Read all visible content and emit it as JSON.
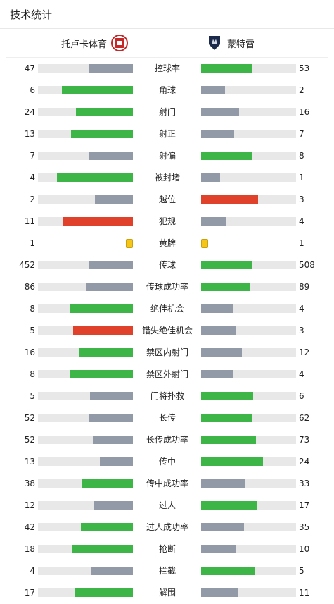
{
  "header": {
    "title": "技术统计"
  },
  "teams": {
    "home": "托卢卡体育",
    "away": "蒙特雷"
  },
  "colors": {
    "win": "#3db547",
    "lose": "#929aa8",
    "foul": "#e0412a",
    "track": "#e8e8e8",
    "card": "#f5c518"
  },
  "stats": [
    {
      "label": "控球率",
      "home": 47,
      "away": 53,
      "home_frac": 0.47,
      "away_frac": 0.53,
      "home_color": "lose",
      "away_color": "win"
    },
    {
      "label": "角球",
      "home": 6,
      "away": 2,
      "home_frac": 0.75,
      "away_frac": 0.25,
      "home_color": "win",
      "away_color": "lose"
    },
    {
      "label": "射门",
      "home": 24,
      "away": 16,
      "home_frac": 0.6,
      "away_frac": 0.4,
      "home_color": "win",
      "away_color": "lose"
    },
    {
      "label": "射正",
      "home": 13,
      "away": 7,
      "home_frac": 0.65,
      "away_frac": 0.35,
      "home_color": "win",
      "away_color": "lose"
    },
    {
      "label": "射偏",
      "home": 7,
      "away": 8,
      "home_frac": 0.47,
      "away_frac": 0.53,
      "home_color": "lose",
      "away_color": "win"
    },
    {
      "label": "被封堵",
      "home": 4,
      "away": 1,
      "home_frac": 0.8,
      "away_frac": 0.2,
      "home_color": "win",
      "away_color": "lose"
    },
    {
      "label": "越位",
      "home": 2,
      "away": 3,
      "home_frac": 0.4,
      "away_frac": 0.6,
      "home_color": "lose",
      "away_color": "foul"
    },
    {
      "label": "犯规",
      "home": 11,
      "away": 4,
      "home_frac": 0.73,
      "away_frac": 0.27,
      "home_color": "foul",
      "away_color": "lose"
    },
    {
      "label": "黄牌",
      "home": 1,
      "away": 1,
      "type": "card"
    },
    {
      "label": "传球",
      "home": 452,
      "away": 508,
      "home_frac": 0.47,
      "away_frac": 0.53,
      "home_color": "lose",
      "away_color": "win"
    },
    {
      "label": "传球成功率",
      "home": 86,
      "away": 89,
      "home_frac": 0.49,
      "away_frac": 0.51,
      "home_color": "lose",
      "away_color": "win"
    },
    {
      "label": "绝佳机会",
      "home": 8,
      "away": 4,
      "home_frac": 0.67,
      "away_frac": 0.33,
      "home_color": "win",
      "away_color": "lose"
    },
    {
      "label": "错失绝佳机会",
      "home": 5,
      "away": 3,
      "home_frac": 0.63,
      "away_frac": 0.37,
      "home_color": "foul",
      "away_color": "lose"
    },
    {
      "label": "禁区内射门",
      "home": 16,
      "away": 12,
      "home_frac": 0.57,
      "away_frac": 0.43,
      "home_color": "win",
      "away_color": "lose"
    },
    {
      "label": "禁区外射门",
      "home": 8,
      "away": 4,
      "home_frac": 0.67,
      "away_frac": 0.33,
      "home_color": "win",
      "away_color": "lose"
    },
    {
      "label": "门将扑救",
      "home": 5,
      "away": 6,
      "home_frac": 0.45,
      "away_frac": 0.55,
      "home_color": "lose",
      "away_color": "win"
    },
    {
      "label": "长传",
      "home": 52,
      "away": 62,
      "home_frac": 0.46,
      "away_frac": 0.54,
      "home_color": "lose",
      "away_color": "win"
    },
    {
      "label": "长传成功率",
      "home": 52,
      "away": 73,
      "home_frac": 0.42,
      "away_frac": 0.58,
      "home_color": "lose",
      "away_color": "win"
    },
    {
      "label": "传中",
      "home": 13,
      "away": 24,
      "home_frac": 0.35,
      "away_frac": 0.65,
      "home_color": "lose",
      "away_color": "win"
    },
    {
      "label": "传中成功率",
      "home": 38,
      "away": 33,
      "home_frac": 0.54,
      "away_frac": 0.46,
      "home_color": "win",
      "away_color": "lose"
    },
    {
      "label": "过人",
      "home": 12,
      "away": 17,
      "home_frac": 0.41,
      "away_frac": 0.59,
      "home_color": "lose",
      "away_color": "win"
    },
    {
      "label": "过人成功率",
      "home": 42,
      "away": 35,
      "home_frac": 0.55,
      "away_frac": 0.45,
      "home_color": "win",
      "away_color": "lose"
    },
    {
      "label": "抢断",
      "home": 18,
      "away": 10,
      "home_frac": 0.64,
      "away_frac": 0.36,
      "home_color": "win",
      "away_color": "lose"
    },
    {
      "label": "拦截",
      "home": 4,
      "away": 5,
      "home_frac": 0.44,
      "away_frac": 0.56,
      "home_color": "lose",
      "away_color": "win"
    },
    {
      "label": "解围",
      "home": 17,
      "away": 11,
      "home_frac": 0.61,
      "away_frac": 0.39,
      "home_color": "win",
      "away_color": "lose"
    }
  ]
}
